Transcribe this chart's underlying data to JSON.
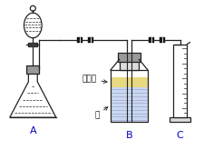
{
  "bg_color": "#ffffff",
  "label_A": "A",
  "label_B": "B",
  "label_C": "C",
  "label_oil": "植物油",
  "label_water": "水",
  "label_color": "#0000cc",
  "oil_color": "#e8d880",
  "water_color": "#c8d8f0",
  "line_color": "#222222",
  "clamp_color": "#111111",
  "stopper_color": "#888888",
  "gray_color": "#999999"
}
